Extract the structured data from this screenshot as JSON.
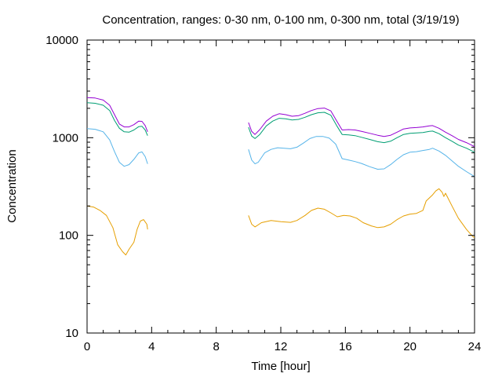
{
  "chart_data": {
    "type": "line",
    "title": "Concentration, ranges: 0-30 nm, 0-100 nm, 0-300 nm, total (3/19/19)",
    "xlabel": "Time [hour]",
    "ylabel": "Concentration",
    "xlim": [
      0,
      24
    ],
    "ylim": [
      10,
      10000
    ],
    "yscale": "log",
    "xticks": [
      0,
      4,
      8,
      12,
      16,
      20,
      24
    ],
    "xtick_labels": [
      "0",
      "4",
      "8",
      "12",
      "16",
      "20",
      "24"
    ],
    "yticks": [
      10,
      100,
      1000,
      10000
    ],
    "ytick_labels": [
      "10",
      "100",
      "1000",
      "10000"
    ],
    "grid": false,
    "series": [
      {
        "color": "#e69f00",
        "segments": [
          [
            [
              0,
              200
            ],
            [
              0.4,
              195
            ],
            [
              0.8,
              180
            ],
            [
              1.2,
              160
            ],
            [
              1.6,
              120
            ],
            [
              1.9,
              80
            ],
            [
              2.2,
              68
            ],
            [
              2.4,
              63
            ],
            [
              2.6,
              72
            ],
            [
              2.9,
              85
            ],
            [
              3.1,
              115
            ],
            [
              3.3,
              140
            ],
            [
              3.5,
              145
            ],
            [
              3.7,
              130
            ],
            [
              3.75,
              115
            ]
          ],
          [
            [
              10,
              160
            ],
            [
              10.2,
              130
            ],
            [
              10.4,
              122
            ],
            [
              10.8,
              135
            ],
            [
              11.4,
              142
            ],
            [
              12,
              138
            ],
            [
              12.6,
              136
            ],
            [
              13,
              142
            ],
            [
              13.5,
              160
            ],
            [
              13.9,
              180
            ],
            [
              14.3,
              190
            ],
            [
              14.7,
              185
            ],
            [
              15.1,
              170
            ],
            [
              15.5,
              155
            ],
            [
              15.9,
              160
            ],
            [
              16.3,
              158
            ],
            [
              16.7,
              150
            ],
            [
              17.1,
              135
            ],
            [
              17.6,
              125
            ],
            [
              18,
              120
            ],
            [
              18.4,
              122
            ],
            [
              18.8,
              130
            ],
            [
              19.2,
              145
            ],
            [
              19.6,
              158
            ],
            [
              20,
              165
            ],
            [
              20.4,
              168
            ],
            [
              20.8,
              180
            ],
            [
              21,
              225
            ],
            [
              21.4,
              260
            ],
            [
              21.6,
              285
            ],
            [
              21.8,
              300
            ],
            [
              22,
              275
            ],
            [
              22.1,
              250
            ],
            [
              22.2,
              270
            ],
            [
              22.6,
              200
            ],
            [
              23,
              150
            ],
            [
              23.5,
              115
            ],
            [
              23.9,
              97
            ],
            [
              24,
              95
            ]
          ]
        ]
      },
      {
        "color": "#56b4e9",
        "segments": [
          [
            [
              0,
              1240
            ],
            [
              0.5,
              1220
            ],
            [
              1,
              1150
            ],
            [
              1.4,
              950
            ],
            [
              1.7,
              720
            ],
            [
              2,
              560
            ],
            [
              2.3,
              510
            ],
            [
              2.6,
              530
            ],
            [
              2.9,
              600
            ],
            [
              3.2,
              700
            ],
            [
              3.4,
              715
            ],
            [
              3.6,
              640
            ],
            [
              3.75,
              540
            ]
          ],
          [
            [
              10,
              760
            ],
            [
              10.2,
              590
            ],
            [
              10.4,
              540
            ],
            [
              10.6,
              560
            ],
            [
              11,
              700
            ],
            [
              11.4,
              760
            ],
            [
              11.8,
              790
            ],
            [
              12.2,
              780
            ],
            [
              12.6,
              770
            ],
            [
              13,
              800
            ],
            [
              13.4,
              880
            ],
            [
              13.8,
              980
            ],
            [
              14.2,
              1030
            ],
            [
              14.6,
              1030
            ],
            [
              15,
              990
            ],
            [
              15.4,
              860
            ],
            [
              15.8,
              610
            ],
            [
              16.2,
              590
            ],
            [
              16.6,
              570
            ],
            [
              17,
              545
            ],
            [
              17.5,
              505
            ],
            [
              18,
              475
            ],
            [
              18.4,
              480
            ],
            [
              18.8,
              530
            ],
            [
              19.2,
              600
            ],
            [
              19.6,
              670
            ],
            [
              20,
              710
            ],
            [
              20.4,
              720
            ],
            [
              20.8,
              740
            ],
            [
              21.2,
              760
            ],
            [
              21.4,
              780
            ],
            [
              21.8,
              730
            ],
            [
              22.2,
              660
            ],
            [
              22.6,
              580
            ],
            [
              23,
              510
            ],
            [
              23.5,
              450
            ],
            [
              24,
              400
            ]
          ]
        ]
      },
      {
        "color": "#009e73",
        "segments": [
          [
            [
              0,
              2280
            ],
            [
              0.5,
              2250
            ],
            [
              1,
              2150
            ],
            [
              1.4,
              1900
            ],
            [
              1.7,
              1500
            ],
            [
              2,
              1250
            ],
            [
              2.3,
              1150
            ],
            [
              2.6,
              1140
            ],
            [
              2.9,
              1200
            ],
            [
              3.2,
              1300
            ],
            [
              3.4,
              1310
            ],
            [
              3.6,
              1200
            ],
            [
              3.75,
              1050
            ]
          ],
          [
            [
              10,
              1280
            ],
            [
              10.2,
              1040
            ],
            [
              10.4,
              980
            ],
            [
              10.7,
              1080
            ],
            [
              11.1,
              1320
            ],
            [
              11.5,
              1480
            ],
            [
              11.9,
              1580
            ],
            [
              12.3,
              1560
            ],
            [
              12.7,
              1520
            ],
            [
              13.1,
              1540
            ],
            [
              13.5,
              1620
            ],
            [
              13.9,
              1720
            ],
            [
              14.3,
              1800
            ],
            [
              14.7,
              1820
            ],
            [
              15.1,
              1700
            ],
            [
              15.5,
              1300
            ],
            [
              15.8,
              1080
            ],
            [
              16.2,
              1070
            ],
            [
              16.6,
              1050
            ],
            [
              17,
              1010
            ],
            [
              17.5,
              960
            ],
            [
              18,
              910
            ],
            [
              18.4,
              890
            ],
            [
              18.8,
              920
            ],
            [
              19.2,
              1000
            ],
            [
              19.6,
              1080
            ],
            [
              20,
              1110
            ],
            [
              20.4,
              1120
            ],
            [
              20.8,
              1130
            ],
            [
              21.2,
              1160
            ],
            [
              21.4,
              1170
            ],
            [
              21.8,
              1100
            ],
            [
              22.2,
              1000
            ],
            [
              22.6,
              920
            ],
            [
              23,
              840
            ],
            [
              23.5,
              780
            ],
            [
              24,
              710
            ]
          ]
        ]
      },
      {
        "color": "#9400d3",
        "segments": [
          [
            [
              0,
              2580
            ],
            [
              0.5,
              2550
            ],
            [
              1,
              2430
            ],
            [
              1.4,
              2150
            ],
            [
              1.7,
              1720
            ],
            [
              2,
              1380
            ],
            [
              2.3,
              1290
            ],
            [
              2.6,
              1290
            ],
            [
              2.9,
              1360
            ],
            [
              3.2,
              1480
            ],
            [
              3.4,
              1470
            ],
            [
              3.6,
              1330
            ],
            [
              3.75,
              1150
            ]
          ],
          [
            [
              10,
              1430
            ],
            [
              10.2,
              1160
            ],
            [
              10.4,
              1080
            ],
            [
              10.7,
              1210
            ],
            [
              11.1,
              1480
            ],
            [
              11.5,
              1660
            ],
            [
              11.9,
              1760
            ],
            [
              12.3,
              1720
            ],
            [
              12.7,
              1660
            ],
            [
              13.1,
              1680
            ],
            [
              13.5,
              1780
            ],
            [
              13.9,
              1900
            ],
            [
              14.3,
              1990
            ],
            [
              14.7,
              2010
            ],
            [
              15.1,
              1880
            ],
            [
              15.5,
              1450
            ],
            [
              15.8,
              1200
            ],
            [
              16.2,
              1210
            ],
            [
              16.6,
              1200
            ],
            [
              17,
              1160
            ],
            [
              17.5,
              1110
            ],
            [
              18,
              1060
            ],
            [
              18.4,
              1030
            ],
            [
              18.8,
              1060
            ],
            [
              19.2,
              1140
            ],
            [
              19.6,
              1230
            ],
            [
              20,
              1260
            ],
            [
              20.4,
              1270
            ],
            [
              20.8,
              1290
            ],
            [
              21.2,
              1320
            ],
            [
              21.4,
              1330
            ],
            [
              21.8,
              1250
            ],
            [
              22.2,
              1140
            ],
            [
              22.6,
              1050
            ],
            [
              23,
              960
            ],
            [
              23.5,
              890
            ],
            [
              24,
              810
            ]
          ]
        ]
      }
    ]
  }
}
